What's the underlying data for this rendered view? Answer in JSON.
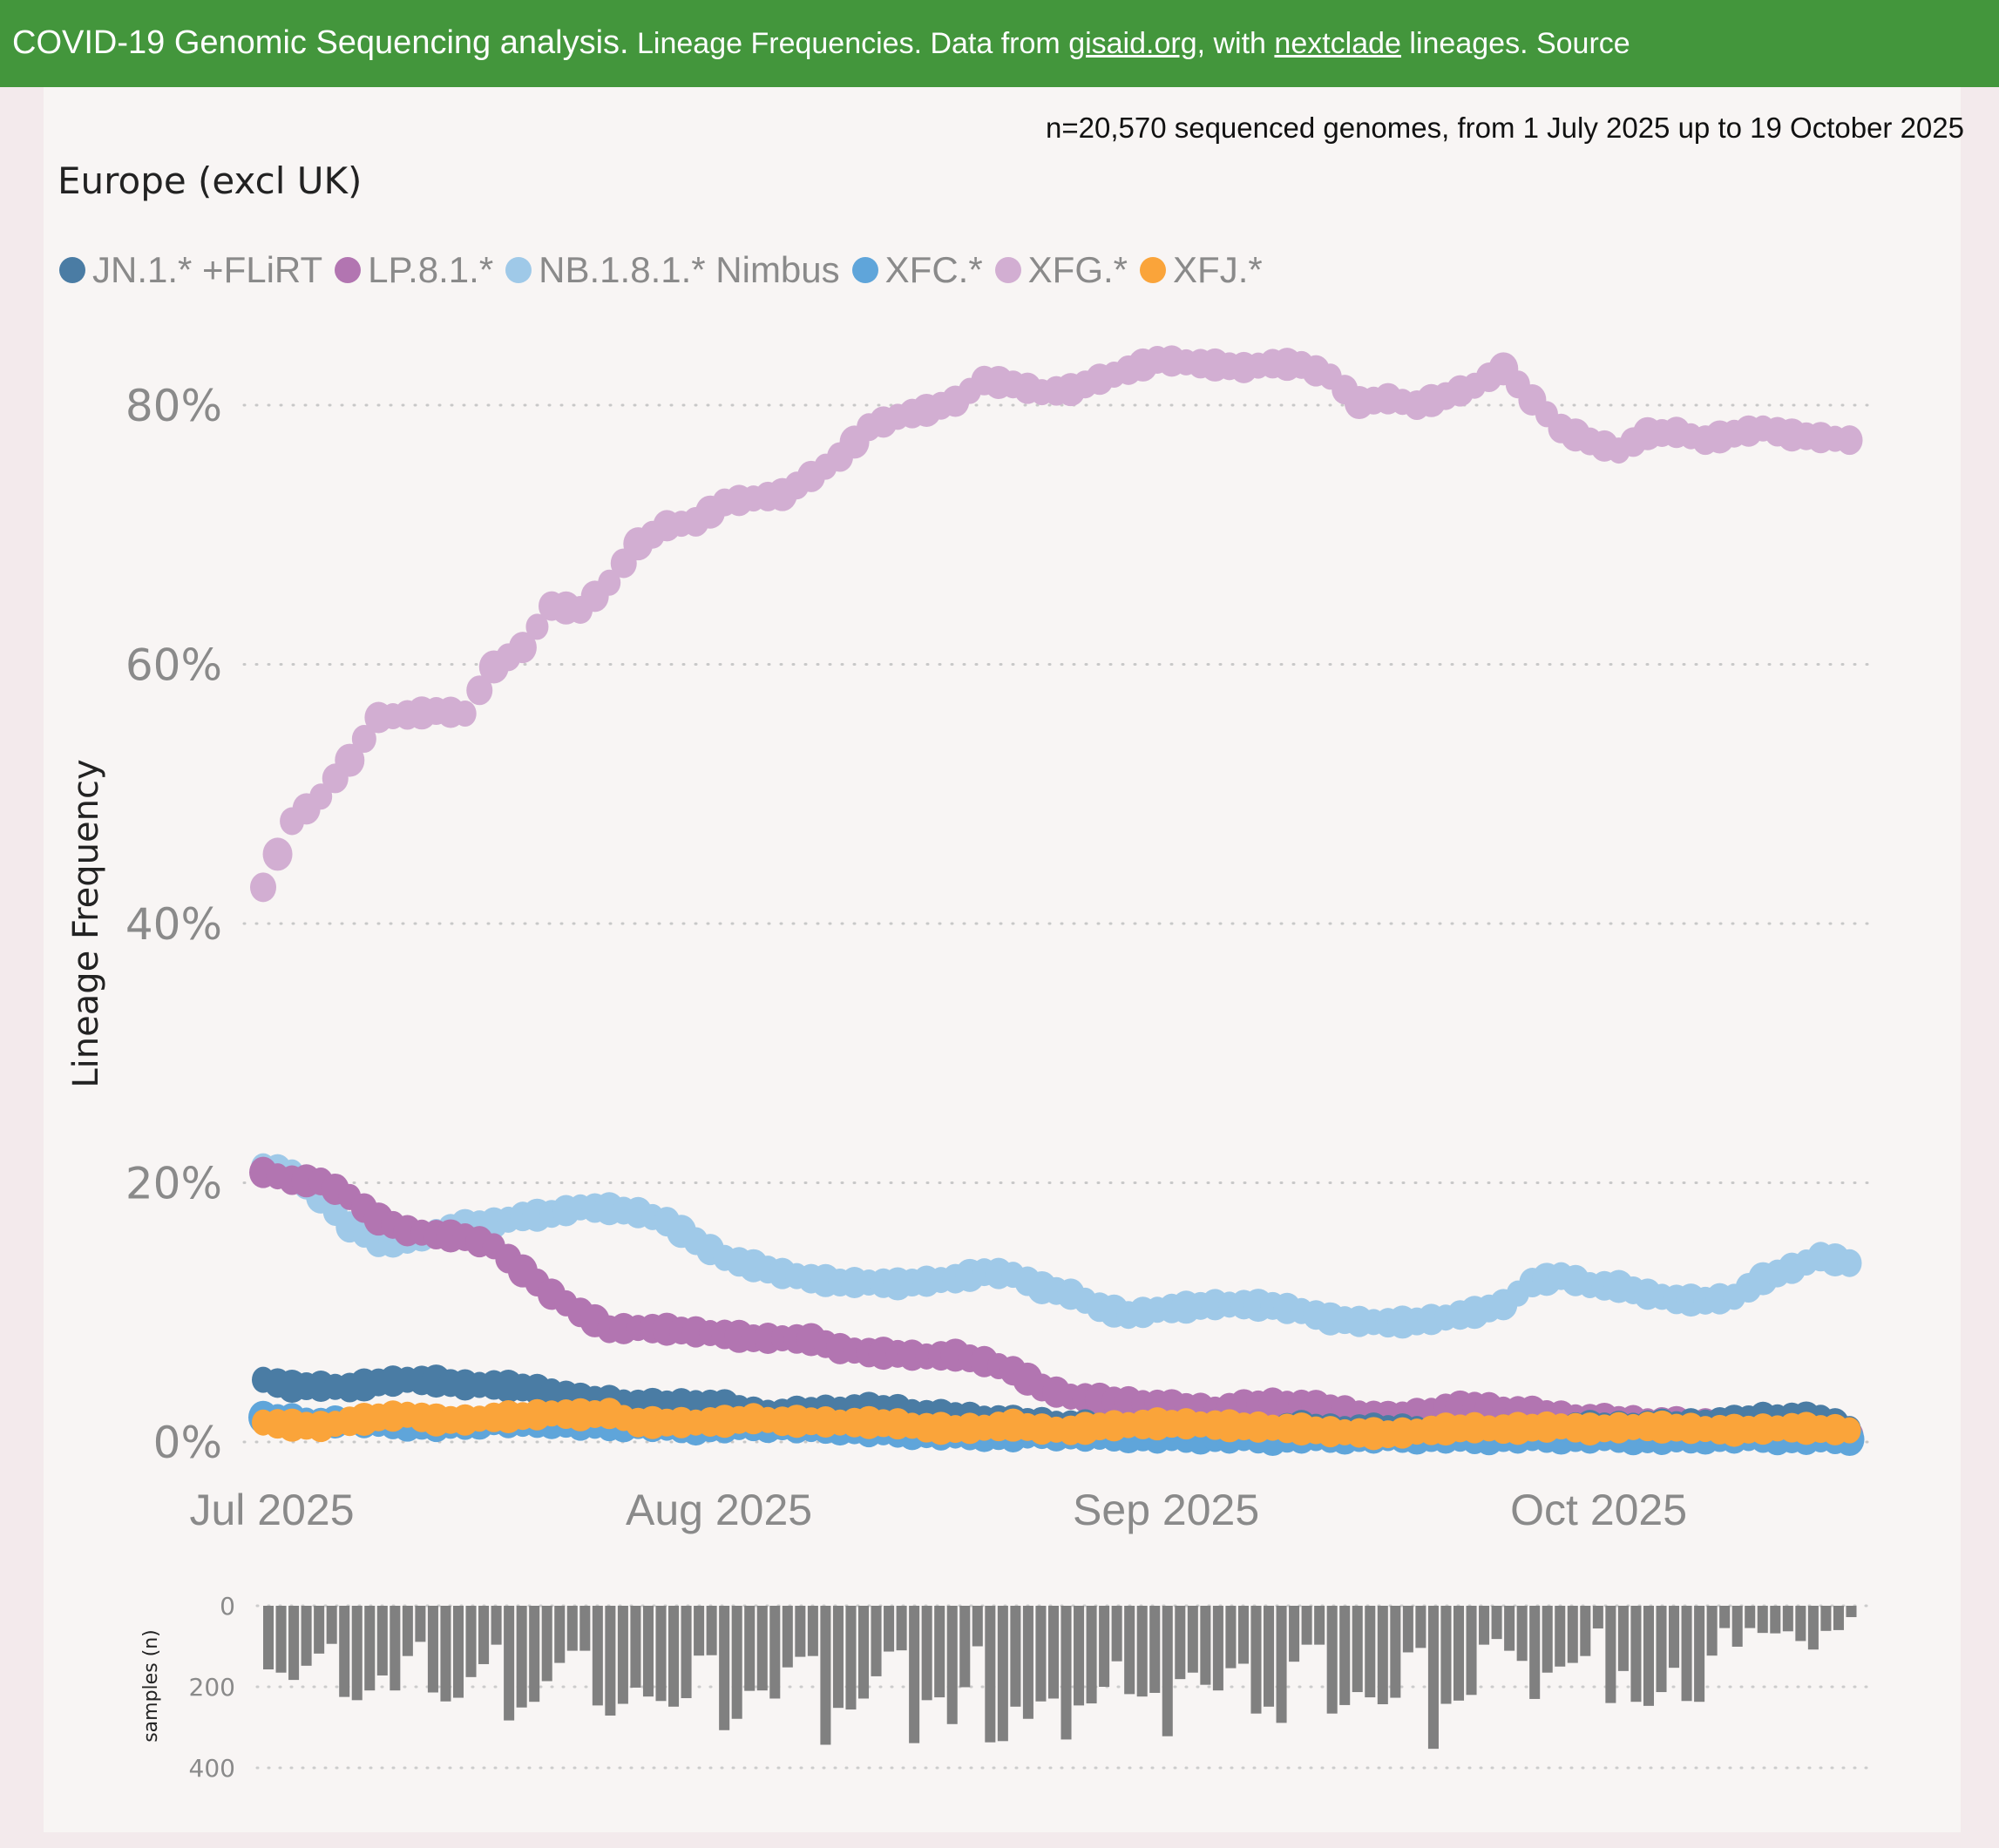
{
  "banner": {
    "part1": "COVID-19 Genomic Sequencing analysis.",
    "part2": " Lineage Frequencies. Data from ",
    "link1": "gisaid.org",
    "part3": ", with ",
    "link2": "nextclade",
    "part4": " lineages. Source"
  },
  "subtitle": "n=20,570 sequenced genomes, from 1 July 2025 up to 19 October 2025",
  "region_title": "Europe (excl UK)",
  "colors": {
    "banner": "#43963c",
    "JN1": "#4a7ca4",
    "LP81": "#b275b1",
    "NB181": "#9fc9e8",
    "XFC": "#5fa5da",
    "XFG": "#d2aed2",
    "XFJ": "#faa43a",
    "bars": "#808080"
  },
  "chart_data": [
    {
      "type": "scatter",
      "title": "Europe (excl UK)",
      "ylabel": "Lineage Frequency",
      "xlabel": "",
      "x_unit": "days since 1 Jul 2025 (every 2 days)",
      "x_start": "2025-07-01",
      "x_step_days": 2,
      "ylim": [
        0,
        85
      ],
      "yticks": [
        "0%",
        "20%",
        "40%",
        "60%",
        "80%"
      ],
      "ytick_values": [
        0,
        20,
        40,
        60,
        80
      ],
      "xticks": [
        "Jul 2025",
        "Aug 2025",
        "Sep 2025",
        "Oct 2025"
      ],
      "xtick_days": [
        0,
        31,
        62,
        92
      ],
      "grid": true,
      "legend_position": "top-left",
      "series": [
        {
          "key": "JN1",
          "name": "JN.1.* +FLiRT",
          "values": [
            4.8,
            4.3,
            4.3,
            4.2,
            4.6,
            4.8,
            4.7,
            4.4,
            4.4,
            4.2,
            3.9,
            3.3,
            3.2,
            2.9,
            2.9,
            3.0,
            2.8,
            2.3,
            2.2,
            2.4,
            2.5,
            2.6,
            2.5,
            2.1,
            2.0,
            1.8,
            1.6,
            1.5,
            1.3,
            1.2,
            1.1,
            1.0,
            1.0,
            1.1,
            1.0,
            1.0,
            1.2,
            1.0,
            1.0,
            1.0,
            1.0,
            0.8,
            0.9,
            1.0,
            1.0,
            1.1,
            1.2,
            1.2,
            1.3,
            1.3,
            1.5,
            1.6,
            1.9,
            1.9,
            1.8,
            1.0
          ]
        },
        {
          "key": "LP81",
          "name": "LP.8.1.*",
          "values": [
            20.8,
            20.2,
            20.1,
            18.9,
            17.2,
            16.3,
            16.0,
            15.8,
            15.1,
            13.2,
            11.4,
            10.0,
            8.7,
            8.8,
            8.7,
            8.5,
            8.3,
            8.0,
            8.0,
            7.9,
            7.2,
            6.9,
            6.8,
            6.6,
            6.7,
            6.2,
            5.5,
            4.2,
            3.5,
            3.3,
            3.1,
            2.9,
            2.7,
            2.5,
            2.8,
            3.0,
            2.9,
            2.6,
            2.2,
            1.9,
            2.2,
            2.6,
            2.8,
            2.5,
            2.3,
            2.0,
            1.8,
            1.7,
            1.6,
            1.5,
            1.4,
            1.3,
            1.1,
            1.0,
            0.8,
            0.5
          ]
        },
        {
          "key": "NB181",
          "name": "NB.1.8.1.* Nimbus",
          "values": [
            21.2,
            20.8,
            18.9,
            16.6,
            15.4,
            15.6,
            16.2,
            16.7,
            16.9,
            17.4,
            17.6,
            18.1,
            18.0,
            17.7,
            17.0,
            15.5,
            14.2,
            13.6,
            13.0,
            12.6,
            12.3,
            12.3,
            12.2,
            12.4,
            12.6,
            13.1,
            12.9,
            11.9,
            11.4,
            10.4,
            9.8,
            10.2,
            10.4,
            10.6,
            10.6,
            10.5,
            10.1,
            9.5,
            9.3,
            9.2,
            9.3,
            9.6,
            10.0,
            10.6,
            12.3,
            12.8,
            12.1,
            12.0,
            11.4,
            11.0,
            10.9,
            11.2,
            12.6,
            13.4,
            14.3,
            13.8
          ]
        },
        {
          "key": "XFC",
          "name": "XFC.*",
          "values": [
            1.9,
            1.8,
            1.5,
            1.6,
            1.4,
            1.3,
            1.2,
            1.3,
            1.6,
            1.4,
            1.5,
            1.3,
            1.2,
            1.3,
            1.1,
            1.0,
            1.1,
            1.2,
            1.2,
            1.0,
            1.0,
            0.8,
            0.7,
            0.6,
            0.5,
            0.5,
            0.4,
            0.6,
            0.5,
            0.4,
            0.4,
            0.3,
            0.3,
            0.3,
            0.3,
            0.2,
            0.3,
            0.3,
            0.3,
            0.3,
            0.3,
            0.3,
            0.2,
            0.3,
            0.3,
            0.3,
            0.3,
            0.3,
            0.2,
            0.2,
            0.3,
            0.3,
            0.3,
            0.2,
            0.2,
            0.2
          ]
        },
        {
          "key": "XFG",
          "name": "XFG.*",
          "values": [
            42.8,
            47.9,
            49.8,
            52.6,
            55.9,
            56.1,
            56.4,
            56.2,
            59.8,
            61.3,
            64.5,
            64.2,
            66.3,
            69.3,
            70.7,
            71.0,
            72.5,
            72.8,
            73.1,
            74.5,
            76.0,
            78.3,
            79.1,
            79.6,
            80.3,
            81.9,
            81.6,
            81.0,
            81.2,
            82.0,
            82.7,
            83.5,
            83.3,
            83.1,
            82.9,
            83.2,
            83.1,
            82.2,
            80.2,
            80.5,
            80.0,
            80.7,
            81.5,
            82.8,
            80.4,
            78.2,
            77.2,
            76.5,
            77.8,
            77.9,
            77.3,
            77.8,
            78.2,
            77.7,
            77.5,
            77.3
          ]
        },
        {
          "key": "XFJ",
          "name": "XFJ.*",
          "values": [
            1.5,
            1.3,
            1.2,
            1.6,
            1.9,
            2.1,
            1.7,
            1.7,
            1.9,
            2.0,
            2.2,
            2.1,
            2.2,
            1.5,
            1.5,
            1.5,
            1.6,
            1.8,
            1.6,
            1.6,
            1.5,
            1.5,
            1.4,
            1.1,
            1.0,
            1.1,
            1.3,
            1.0,
            0.9,
            1.2,
            1.3,
            1.4,
            1.4,
            1.3,
            1.2,
            1.1,
            1.0,
            0.8,
            0.7,
            0.6,
            0.8,
            1.0,
            1.1,
            1.0,
            1.1,
            1.2,
            1.0,
            1.1,
            1.2,
            1.1,
            1.0,
            0.9,
            1.0,
            1.1,
            1.0,
            0.9
          ]
        }
      ]
    },
    {
      "type": "bar",
      "title": "",
      "ylabel": "samples (n)",
      "x_start": "2025-07-01",
      "x_step_days": 1,
      "ylim": [
        0,
        400
      ],
      "inverted": true,
      "yticks": [
        "0",
        "200",
        "400"
      ],
      "ytick_values": [
        0,
        200,
        400
      ],
      "grid": true,
      "values": [
        157,
        165,
        183,
        148,
        118,
        94,
        225,
        233,
        209,
        172,
        209,
        124,
        89,
        214,
        236,
        227,
        176,
        144,
        96,
        283,
        251,
        237,
        186,
        141,
        111,
        111,
        246,
        271,
        242,
        202,
        224,
        235,
        249,
        228,
        123,
        122,
        307,
        279,
        210,
        209,
        229,
        152,
        126,
        124,
        343,
        252,
        256,
        229,
        174,
        113,
        110,
        339,
        233,
        226,
        292,
        201,
        100,
        337,
        334,
        249,
        279,
        236,
        229,
        330,
        246,
        241,
        200,
        137,
        218,
        224,
        215,
        322,
        181,
        165,
        195,
        209,
        154,
        143,
        266,
        249,
        289,
        138,
        96,
        96,
        266,
        245,
        213,
        226,
        243,
        227,
        115,
        104,
        353,
        242,
        234,
        220,
        96,
        82,
        111,
        136,
        230,
        165,
        150,
        141,
        124,
        56,
        240,
        161,
        237,
        247,
        213,
        153,
        235,
        237,
        123,
        55,
        101,
        55,
        67,
        68,
        63,
        87,
        108,
        62,
        60,
        28
      ]
    }
  ]
}
